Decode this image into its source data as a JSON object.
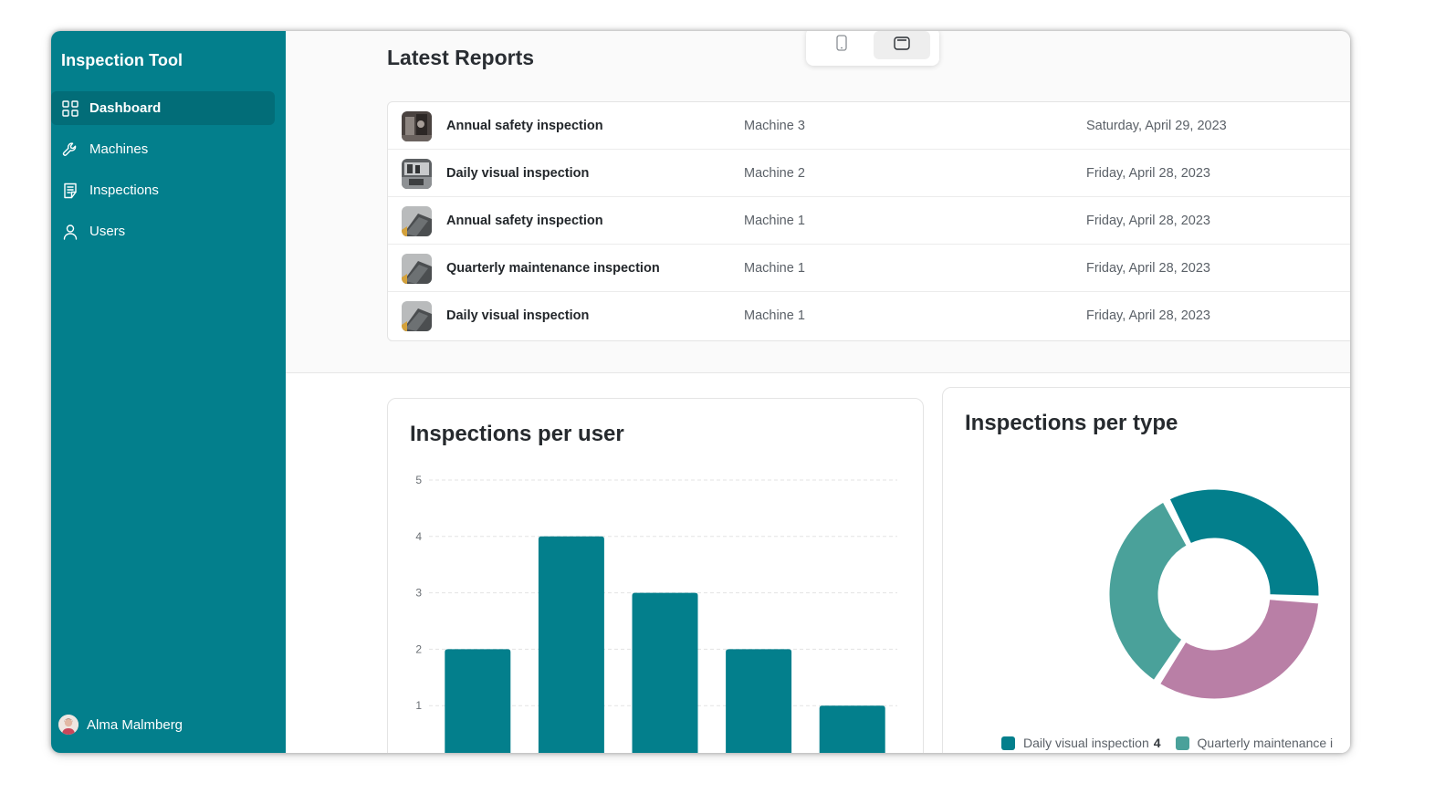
{
  "app": {
    "title": "Inspection Tool"
  },
  "sidebar": {
    "items": [
      {
        "label": "Dashboard",
        "icon": "grid-icon",
        "active": true
      },
      {
        "label": "Machines",
        "icon": "wrench-icon",
        "active": false
      },
      {
        "label": "Inspections",
        "icon": "checklist-icon",
        "active": false
      },
      {
        "label": "Users",
        "icon": "user-icon",
        "active": false
      }
    ],
    "user": {
      "name": "Alma Malmberg"
    }
  },
  "device_toggle": {
    "options": [
      "mobile",
      "tablet"
    ],
    "selected": "tablet"
  },
  "reports": {
    "title": "Latest Reports",
    "rows": [
      {
        "title": "Annual safety inspection",
        "machine": "Machine 3",
        "date": "Saturday, April 29, 2023"
      },
      {
        "title": "Daily visual inspection",
        "machine": "Machine 2",
        "date": "Friday, April 28, 2023"
      },
      {
        "title": "Annual safety inspection",
        "machine": "Machine 1",
        "date": "Friday, April 28, 2023"
      },
      {
        "title": "Quarterly maintenance inspection",
        "machine": "Machine 1",
        "date": "Friday, April 28, 2023"
      },
      {
        "title": "Daily visual inspection",
        "machine": "Machine 1",
        "date": "Friday, April 28, 2023"
      }
    ]
  },
  "colors": {
    "brand": "#037f8c",
    "brand_dark": "#026d78",
    "teal_light": "#4aa19a",
    "mauve": "#b97fa6"
  },
  "chart_data": [
    {
      "type": "bar",
      "title": "Inspections per user",
      "categories": [
        "",
        "",
        "",
        "",
        ""
      ],
      "values": [
        2,
        4,
        3,
        2,
        1
      ],
      "ylim": [
        0,
        5
      ],
      "yticks": [
        1,
        2,
        3,
        4,
        5
      ],
      "grid": true,
      "color": "#037f8c"
    },
    {
      "type": "pie",
      "title": "Inspections per type",
      "donut": true,
      "slices": [
        {
          "label": "Daily visual inspection",
          "value": 4,
          "color": "#037f8c"
        },
        {
          "label": "Quarterly maintenance i",
          "value": 4,
          "color": "#b97fa6"
        },
        {
          "label": "",
          "value": 4,
          "color": "#4aa19a"
        }
      ],
      "legend": [
        {
          "label": "Daily visual inspection",
          "value": "4",
          "color": "#037f8c"
        },
        {
          "label": "Quarterly maintenance i",
          "value": "",
          "color": "#4aa19a"
        }
      ]
    }
  ]
}
